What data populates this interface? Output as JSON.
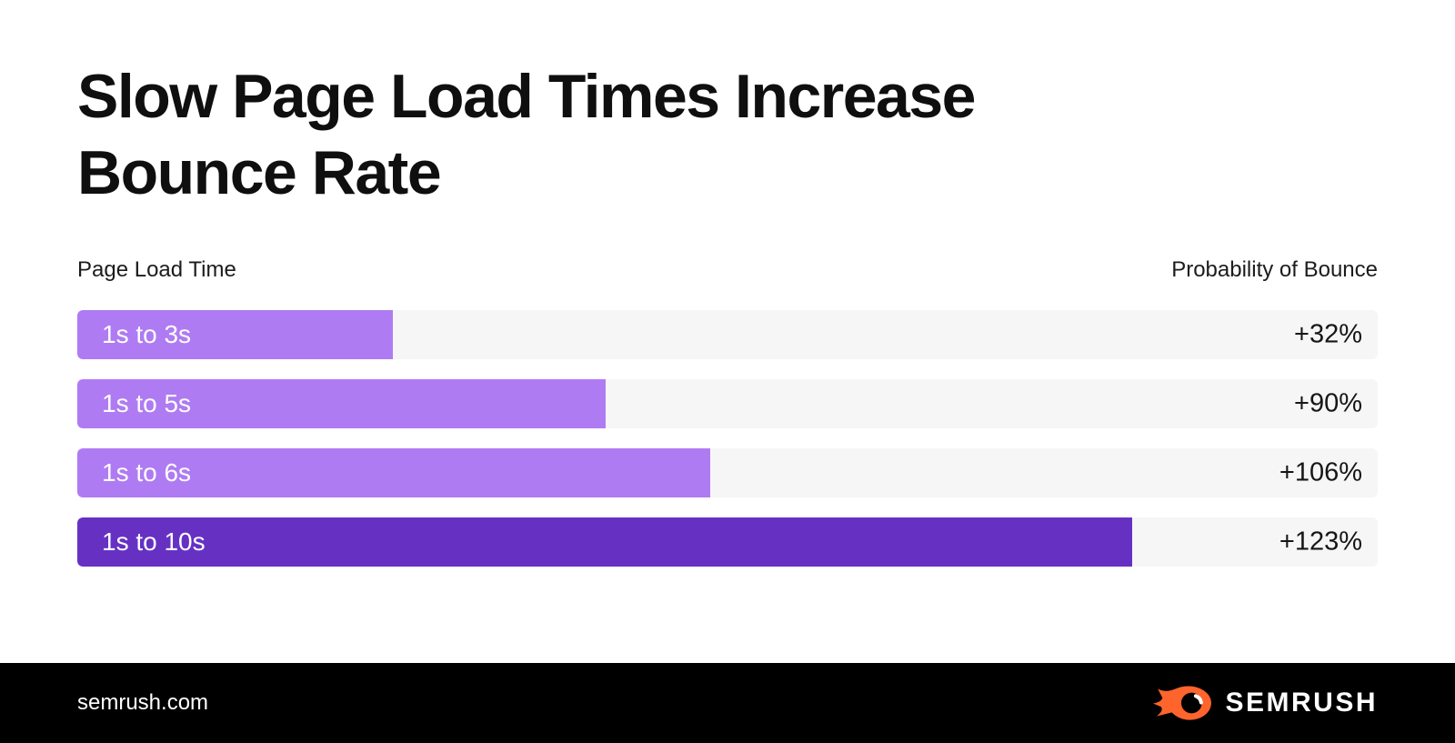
{
  "header": {
    "title_line1": "Slow Page Load Times Increase",
    "title_line2": "Bounce Rate"
  },
  "chart": {
    "left_header": "Page Load Time",
    "right_header": "Probability of Bounce",
    "colors": {
      "bar_light": "#AF7BF2",
      "bar_dark": "#6631C3",
      "track": "#F6F6F7",
      "bar_label_text": "#FFFFFF",
      "value_text": "#161616"
    },
    "rows": [
      {
        "label": "1s to 3s",
        "value": "+32%",
        "width_pct": 24.3,
        "emphasis": false
      },
      {
        "label": "1s to 5s",
        "value": "+90%",
        "width_pct": 40.6,
        "emphasis": false
      },
      {
        "label": "1s to 6s",
        "value": "+106%",
        "width_pct": 48.7,
        "emphasis": false
      },
      {
        "label": "1s to 10s",
        "value": "+123%",
        "width_pct": 81.1,
        "emphasis": true
      }
    ]
  },
  "chart_data": {
    "type": "bar",
    "orientation": "horizontal",
    "title": "Slow Page Load Times Increase Bounce Rate",
    "categories": [
      "1s to 3s",
      "1s to 5s",
      "1s to 6s",
      "1s to 10s"
    ],
    "values": [
      32,
      90,
      106,
      123
    ],
    "value_labels": [
      "+32%",
      "+90%",
      "+106%",
      "+123%"
    ],
    "xlabel": "Probability of Bounce",
    "ylabel": "Page Load Time",
    "bar_length_fractions_of_track": [
      0.243,
      0.406,
      0.487,
      0.811
    ],
    "highlight_category": "1s to 10s",
    "legend": false,
    "grid": false
  },
  "footer": {
    "site": "semrush.com",
    "logo_text": "SEMRUSH",
    "logo_color": "#FF642D",
    "bg": "#000000"
  }
}
